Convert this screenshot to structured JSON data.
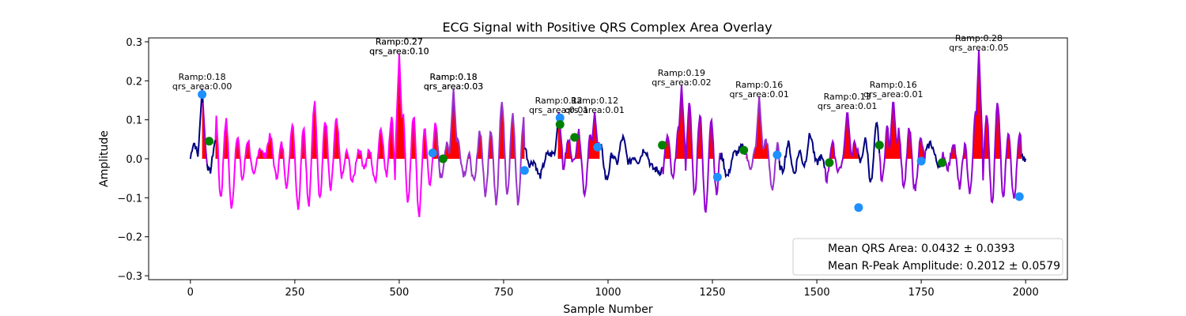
{
  "chart_data": {
    "type": "line",
    "title": "ECG Signal with Positive QRS Complex Area Overlay",
    "xlabel": "Sample Number",
    "ylabel": "Amplitude",
    "xlim": [
      -100,
      2100
    ],
    "ylim": [
      -0.31,
      0.31
    ],
    "xticks": [
      0,
      250,
      500,
      750,
      1000,
      1250,
      1500,
      1750,
      2000
    ],
    "yticks": [
      -0.3,
      -0.2,
      -0.1,
      0.0,
      0.1,
      0.2,
      0.3
    ],
    "ytick_labels": [
      "−0.3",
      "−0.2",
      "−0.1",
      "0.0",
      "0.1",
      "0.2",
      "0.3"
    ],
    "grid": false,
    "segments": [
      {
        "start": 0,
        "end": 30,
        "color": "#000080"
      },
      {
        "start": 30,
        "end": 40,
        "color": "#9400D3"
      },
      {
        "start": 40,
        "end": 60,
        "color": "#000080"
      },
      {
        "start": 60,
        "end": 590,
        "color": "#FF00FF"
      },
      {
        "start": 590,
        "end": 800,
        "color": "#9932CC"
      },
      {
        "start": 800,
        "end": 880,
        "color": "#000080"
      },
      {
        "start": 880,
        "end": 980,
        "color": "#9400D3"
      },
      {
        "start": 980,
        "end": 1130,
        "color": "#000080"
      },
      {
        "start": 1130,
        "end": 1270,
        "color": "#9400D3"
      },
      {
        "start": 1270,
        "end": 1330,
        "color": "#000080"
      },
      {
        "start": 1330,
        "end": 1410,
        "color": "#9932CC"
      },
      {
        "start": 1410,
        "end": 1520,
        "color": "#000080"
      },
      {
        "start": 1520,
        "end": 1600,
        "color": "#9400D3"
      },
      {
        "start": 1600,
        "end": 1650,
        "color": "#000080"
      },
      {
        "start": 1650,
        "end": 1760,
        "color": "#9400D3"
      },
      {
        "start": 1760,
        "end": 1800,
        "color": "#000080"
      },
      {
        "start": 1800,
        "end": 1990,
        "color": "#9400D3"
      },
      {
        "start": 1990,
        "end": 2000,
        "color": "#000080"
      }
    ],
    "qrs_area_fill": {
      "color": "#FF0000",
      "ranges": [
        [
          28,
          42
        ],
        [
          60,
          590
        ],
        [
          590,
          800
        ],
        [
          880,
          980
        ],
        [
          1130,
          1270
        ],
        [
          1330,
          1410
        ],
        [
          1520,
          1600
        ],
        [
          1650,
          1760
        ],
        [
          1800,
          1990
        ]
      ]
    },
    "annotations": [
      {
        "x": 28,
        "y": 0.18,
        "ramp": "Ramp:0.18",
        "area": "qrs_area:0.00"
      },
      {
        "x": 500,
        "y": 0.27,
        "ramp": "Ramp:0.27",
        "area": "qrs_area:0.10"
      },
      {
        "x": 500,
        "y": 0.27,
        "ramp": "Ramp:0.27",
        "area": "qrs_area:0.10"
      },
      {
        "x": 630,
        "y": 0.18,
        "ramp": "Ramp:0.18",
        "area": "qrs_area:0.03"
      },
      {
        "x": 630,
        "y": 0.18,
        "ramp": "Ramp:0.18",
        "area": "qrs_area:0.03"
      },
      {
        "x": 882,
        "y": 0.12,
        "ramp": "Ramp:0.12",
        "area": "qrs_area:0.01"
      },
      {
        "x": 968,
        "y": 0.12,
        "ramp": "Ramp:0.12",
        "area": "qrs_area:0.01"
      },
      {
        "x": 1176,
        "y": 0.19,
        "ramp": "Ramp:0.19",
        "area": "qrs_area:0.02"
      },
      {
        "x": 1362,
        "y": 0.16,
        "ramp": "Ramp:0.16",
        "area": "qrs_area:0.01"
      },
      {
        "x": 1573,
        "y": 0.13,
        "ramp": "Ramp:0.13",
        "area": "qrs_area:0.01"
      },
      {
        "x": 1683,
        "y": 0.16,
        "ramp": "Ramp:0.16",
        "area": "qrs_area:0.01"
      },
      {
        "x": 1888,
        "y": 0.28,
        "ramp": "Ramp:0.28",
        "area": "qrs_area:0.05"
      }
    ],
    "markers": {
      "r_peaks": {
        "color": "#1E90FF",
        "points": [
          [
            28,
            0.165
          ],
          [
            580,
            0.015
          ],
          [
            800,
            -0.03
          ],
          [
            885,
            0.105
          ],
          [
            975,
            0.03
          ],
          [
            1262,
            -0.047
          ],
          [
            1405,
            0.01
          ],
          [
            1600,
            -0.125
          ],
          [
            1750,
            -0.006
          ],
          [
            1985,
            -0.097
          ]
        ]
      },
      "onsets": {
        "color": "#008000",
        "points": [
          [
            45,
            0.045
          ],
          [
            605,
            0.0
          ],
          [
            885,
            0.088
          ],
          [
            920,
            0.055
          ],
          [
            1130,
            0.035
          ],
          [
            1325,
            0.022
          ],
          [
            1530,
            -0.01
          ],
          [
            1650,
            0.035
          ],
          [
            1800,
            -0.01
          ]
        ]
      }
    },
    "legend": {
      "position": "lower right",
      "entries": [
        "Mean QRS Area: 0.0432 ± 0.0393",
        "Mean R-Peak Amplitude: 0.2012 ± 0.0579"
      ]
    }
  }
}
